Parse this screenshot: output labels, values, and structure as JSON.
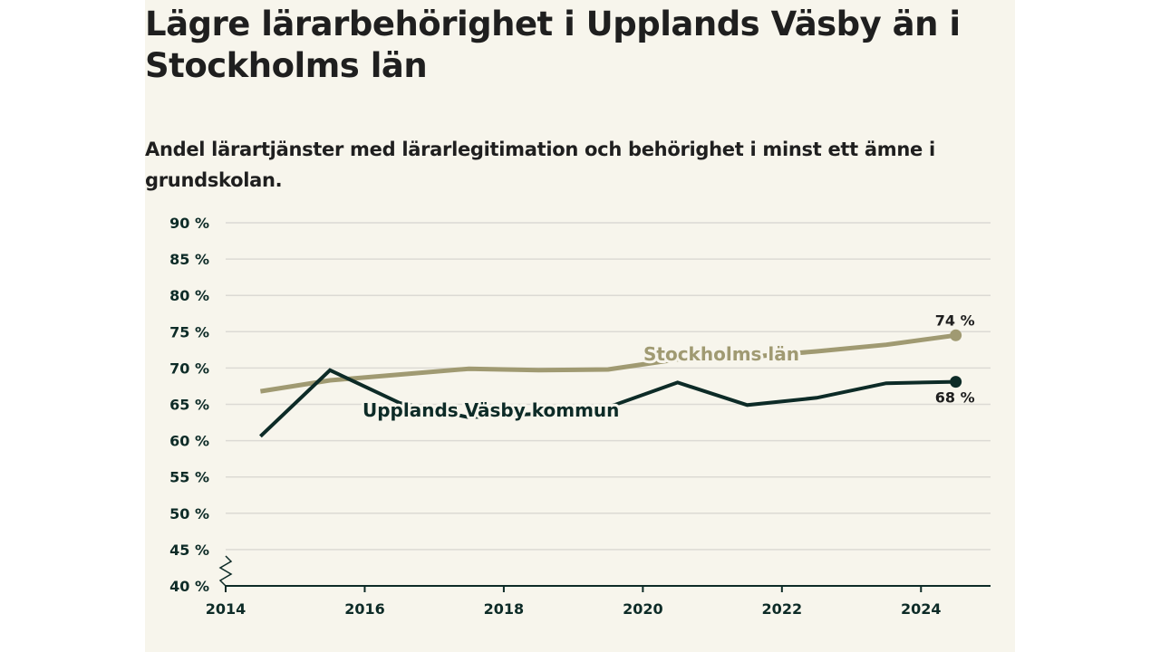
{
  "title": "Lägre lärarbehörighet i Upplands Väsby än i Stockholms län",
  "subtitle": "Andel lärartjänster med lärarlegitimation och behörighet i minst ett ämne i grundskolan.",
  "colors": {
    "background": "#f7f5ec",
    "stockholm": "#a09a72",
    "vasby": "#0d2b27",
    "grid": "#dcdad4",
    "axis": "#0d2b27"
  },
  "chart_data": {
    "type": "line",
    "x": [
      2014.5,
      2015.5,
      2016.5,
      2017.5,
      2018.5,
      2019.5,
      2020.5,
      2021.5,
      2022.5,
      2023.5,
      2024.5
    ],
    "series": [
      {
        "name": "Stockholms län",
        "values": [
          66.8,
          68.3,
          69.1,
          69.9,
          69.7,
          69.8,
          71.2,
          71.5,
          72.3,
          73.2,
          74.5
        ],
        "end_label": "74 %"
      },
      {
        "name": "Upplands Väsby kommun",
        "values": [
          60.6,
          69.7,
          65.2,
          63.2,
          63.7,
          64.6,
          68.0,
          64.9,
          65.9,
          67.9,
          68.1
        ],
        "end_label": "68 %"
      }
    ],
    "xlim": [
      2014,
      2025
    ],
    "ylim": [
      40,
      90
    ],
    "x_ticks": [
      2014,
      2016,
      2018,
      2020,
      2022,
      2024
    ],
    "x_tick_labels": [
      "2014",
      "2016",
      "2018",
      "2020",
      "2022",
      "2024"
    ],
    "y_ticks": [
      40,
      45,
      50,
      55,
      60,
      65,
      70,
      75,
      80,
      85,
      90
    ],
    "y_tick_labels": [
      "40 %",
      "45 %",
      "50 %",
      "55 %",
      "60 %",
      "65 %",
      "70 %",
      "75 %",
      "80 %",
      "85 %",
      "90 %"
    ],
    "grid": true,
    "axis_break": true
  }
}
